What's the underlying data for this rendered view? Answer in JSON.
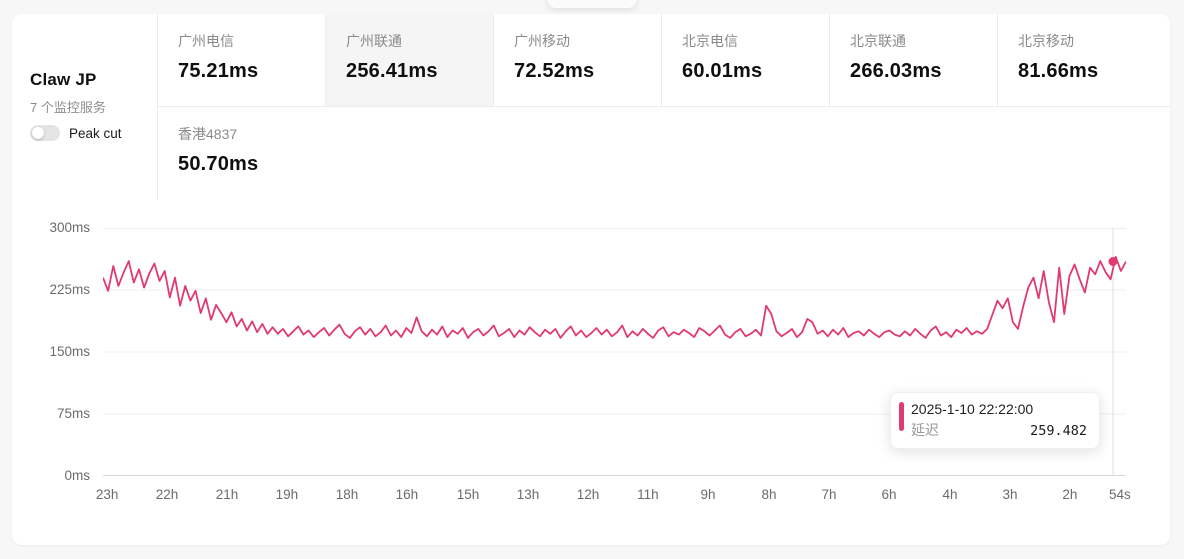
{
  "page": {
    "background": "#f7f7f8",
    "accent": "#e03a6e"
  },
  "service": {
    "title": "Claw JP",
    "count_label": "7 个监控服务",
    "toggle_label": "Peak cut",
    "toggle_state": "off"
  },
  "tabs": [
    {
      "label": "广州电信",
      "value": "75.21ms",
      "selected": false
    },
    {
      "label": "广州联通",
      "value": "256.41ms",
      "selected": true
    },
    {
      "label": "广州移动",
      "value": "72.52ms",
      "selected": false
    },
    {
      "label": "北京电信",
      "value": "60.01ms",
      "selected": false
    },
    {
      "label": "北京联通",
      "value": "266.03ms",
      "selected": false
    },
    {
      "label": "北京移动",
      "value": "81.66ms",
      "selected": false
    },
    {
      "label": "香港4837",
      "value": "50.70ms",
      "selected": false
    }
  ],
  "chart_data": {
    "type": "line",
    "series_name": "延迟",
    "color": "#e03a6e",
    "unit": "ms",
    "ylim": [
      0,
      300
    ],
    "grid": true,
    "y_ticks": [
      "0ms",
      "75ms",
      "150ms",
      "225ms",
      "300ms"
    ],
    "x_ticks": [
      {
        "label": "23h",
        "f": 0.004
      },
      {
        "label": "22h",
        "f": 0.0626
      },
      {
        "label": "21h",
        "f": 0.1212
      },
      {
        "label": "19h",
        "f": 0.1798
      },
      {
        "label": "18h",
        "f": 0.2385
      },
      {
        "label": "16h",
        "f": 0.2971
      },
      {
        "label": "15h",
        "f": 0.3568
      },
      {
        "label": "13h",
        "f": 0.4155
      },
      {
        "label": "12h",
        "f": 0.4741
      },
      {
        "label": "11h",
        "f": 0.5327
      },
      {
        "label": "9h",
        "f": 0.5914
      },
      {
        "label": "8h",
        "f": 0.651
      },
      {
        "label": "7h",
        "f": 0.7097
      },
      {
        "label": "6h",
        "f": 0.7683
      },
      {
        "label": "4h",
        "f": 0.828
      },
      {
        "label": "3h",
        "f": 0.8866
      },
      {
        "label": "2h",
        "f": 0.9452
      },
      {
        "label": "54s",
        "f": 0.994
      }
    ],
    "points": [
      240,
      224,
      254,
      230,
      246,
      260,
      234,
      250,
      228,
      245,
      257,
      236,
      248,
      216,
      240,
      206,
      230,
      212,
      224,
      197,
      215,
      189,
      207,
      197,
      186,
      198,
      181,
      190,
      176,
      187,
      174,
      184,
      172,
      180,
      172,
      178,
      169,
      175,
      181,
      171,
      176,
      168,
      174,
      179,
      170,
      177,
      183,
      172,
      167,
      175,
      180,
      171,
      178,
      169,
      174,
      182,
      170,
      176,
      168,
      179,
      173,
      192,
      175,
      169,
      177,
      171,
      181,
      168,
      176,
      172,
      179,
      167,
      174,
      178,
      170,
      175,
      182,
      169,
      173,
      178,
      168,
      176,
      171,
      180,
      174,
      169,
      177,
      172,
      178,
      167,
      175,
      181,
      170,
      176,
      168,
      173,
      179,
      171,
      177,
      169,
      174,
      182,
      168,
      175,
      170,
      178,
      172,
      167,
      176,
      180,
      169,
      174,
      171,
      177,
      173,
      168,
      179,
      175,
      170,
      176,
      182,
      171,
      167,
      174,
      178,
      169,
      172,
      177,
      170,
      206,
      196,
      175,
      169,
      173,
      178,
      168,
      174,
      190,
      186,
      172,
      176,
      169,
      177,
      171,
      179,
      168,
      173,
      175,
      170,
      177,
      172,
      168,
      174,
      176,
      171,
      169,
      175,
      170,
      178,
      172,
      167,
      176,
      181,
      170,
      174,
      168,
      177,
      173,
      179,
      171,
      175,
      172,
      178,
      195,
      212,
      203,
      215,
      186,
      178,
      205,
      228,
      240,
      215,
      248,
      210,
      186,
      252,
      196,
      242,
      256,
      238,
      222,
      252,
      244,
      260,
      247,
      238,
      265,
      248,
      259.5
    ],
    "crosshair_f": 0.9873,
    "marker_value": 259.482,
    "tooltip": {
      "datetime": "2025-1-10 22:22:00",
      "series": "延迟",
      "value": "259.482"
    }
  }
}
